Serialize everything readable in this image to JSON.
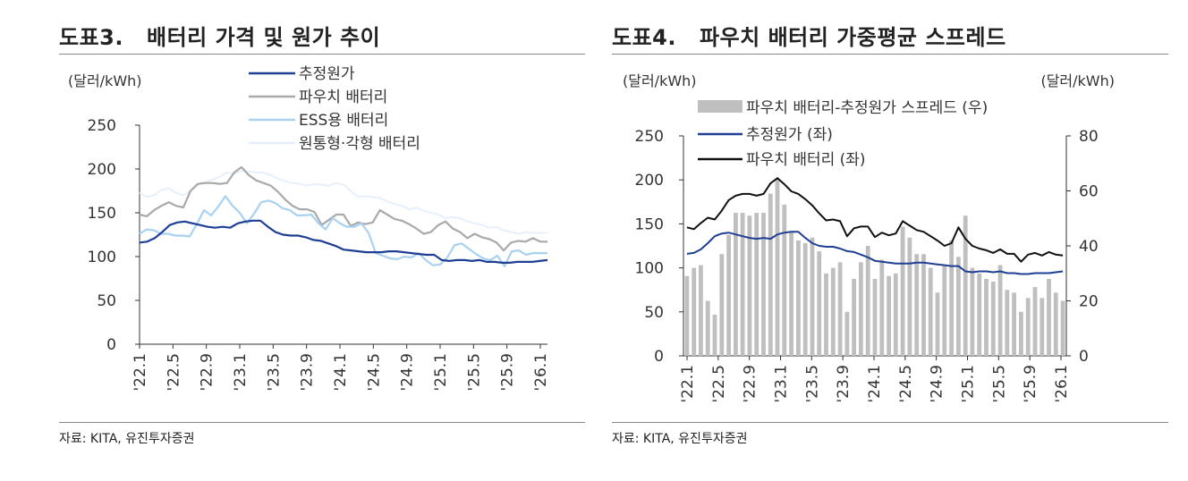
{
  "chart_data": [
    {
      "type": "line",
      "figure_no": "도표3.",
      "title": "배터리 가격 및 원가 추이",
      "ylabel": "(달러/kWh)",
      "ylim": [
        0,
        250
      ],
      "yticks": [
        "0",
        "50",
        "100",
        "150",
        "200",
        "250"
      ],
      "xticklabels": [
        "'22.1",
        "'22.5",
        "'22.9",
        "'23.1",
        "'23.5",
        "'23.9",
        "'24.1",
        "'24.5",
        "'24.9",
        "'25.1",
        "'25.5",
        "'25.9",
        "'26.1"
      ],
      "source": "자료: KITA, 유진투자증권",
      "series": [
        {
          "name": "추정원가",
          "color": "#1F3F94",
          "width": 2.2,
          "values": [
            116,
            117,
            121,
            128,
            136,
            139,
            140,
            138,
            136,
            134,
            133,
            134,
            133,
            138,
            140,
            141,
            141,
            134,
            128,
            125,
            124,
            124,
            122,
            119,
            118,
            115,
            112,
            108,
            107,
            106,
            105,
            105,
            105,
            106,
            106,
            105,
            104,
            103,
            102,
            102,
            96,
            95,
            96,
            96,
            95,
            96,
            94,
            94,
            93,
            93,
            94,
            94,
            94,
            95,
            96
          ]
        },
        {
          "name": "파우치 배터리",
          "color": "#A9A9A9",
          "width": 2.2,
          "values": [
            148,
            146,
            153,
            158,
            162,
            158,
            156,
            175,
            183,
            184,
            184,
            183,
            184,
            196,
            202,
            193,
            187,
            184,
            181,
            174,
            165,
            158,
            154,
            154,
            151,
            136,
            142,
            148,
            148,
            135,
            139,
            137,
            139,
            153,
            148,
            143,
            141,
            137,
            132,
            126,
            128,
            136,
            140,
            132,
            128,
            121,
            126,
            122,
            120,
            116,
            107,
            116,
            118,
            117,
            121,
            117,
            117
          ]
        },
        {
          "name": "ESS용 배터리",
          "color": "#A9D1F2",
          "width": 2.2,
          "values": [
            126,
            131,
            130,
            126,
            126,
            124,
            124,
            123,
            137,
            153,
            147,
            157,
            169,
            158,
            150,
            138,
            149,
            162,
            164,
            161,
            155,
            153,
            147,
            147,
            148,
            138,
            131,
            144,
            138,
            134,
            134,
            138,
            127,
            104,
            101,
            98,
            97,
            100,
            99,
            104,
            96,
            90,
            91,
            99,
            113,
            115,
            109,
            103,
            98,
            96,
            101,
            89,
            106,
            107,
            102,
            104,
            104,
            104
          ]
        },
        {
          "name": "원통형·각형 배터리",
          "color": "#E6F0FB",
          "width": 2.0,
          "values": [
            173,
            168,
            170,
            176,
            178,
            173,
            170,
            175,
            182,
            185,
            188,
            191,
            196,
            194,
            198,
            197,
            196,
            196,
            193,
            189,
            186,
            184,
            183,
            181,
            183,
            182,
            181,
            184,
            182,
            175,
            168,
            169,
            168,
            167,
            163,
            160,
            158,
            154,
            156,
            152,
            150,
            148,
            144,
            145,
            144,
            140,
            138,
            136,
            133,
            134,
            130,
            128,
            126,
            128,
            127,
            127,
            127
          ]
        }
      ]
    },
    {
      "type": "bar+line",
      "figure_no": "도표4.",
      "title": "파우치 배터리 가중평균 스프레드",
      "ylabel_left": "(달러/kWh)",
      "ylabel_right": "(달러/kWh)",
      "ylim_left": [
        0,
        250
      ],
      "ylim_right": [
        0,
        80
      ],
      "yticks_left": [
        "0",
        "50",
        "100",
        "150",
        "200",
        "250"
      ],
      "yticks_right": [
        "0",
        "20",
        "40",
        "60",
        "80"
      ],
      "xticklabels": [
        "'22.1",
        "'22.5",
        "'22.9",
        "'23.1",
        "'23.5",
        "'23.9",
        "'24.1",
        "'24.5",
        "'24.9",
        "'25.1",
        "'25.5",
        "'25.9",
        "'26.1"
      ],
      "source": "자료: KITA, 유진투자증권",
      "bars": {
        "name": "파우치 배터리-추정원가 스프레드 (우)",
        "color": "#BFBFBF",
        "values": [
          29,
          32,
          33,
          20,
          15,
          37,
          44,
          52,
          52,
          51,
          52,
          52,
          59,
          64,
          55,
          45,
          42,
          41,
          43,
          38,
          30,
          32,
          34,
          16,
          28,
          34,
          40,
          28,
          35,
          29,
          30,
          47,
          43,
          37,
          37,
          32,
          23,
          33,
          42,
          36,
          51,
          32,
          30,
          28,
          27,
          33,
          24,
          23,
          16,
          21,
          25,
          21,
          28,
          23,
          20
        ]
      },
      "series": [
        {
          "name": "추정원가 (좌)",
          "axis": "left",
          "color": "#1F3F94",
          "width": 2.0,
          "values": [
            116,
            117,
            121,
            128,
            136,
            139,
            140,
            138,
            136,
            134,
            133,
            134,
            133,
            138,
            140,
            141,
            141,
            134,
            128,
            125,
            124,
            124,
            122,
            119,
            118,
            115,
            112,
            108,
            107,
            106,
            105,
            105,
            105,
            106,
            106,
            105,
            104,
            103,
            102,
            102,
            96,
            95,
            96,
            96,
            95,
            96,
            94,
            94,
            93,
            93,
            94,
            94,
            94,
            95,
            96
          ]
        },
        {
          "name": "파우치 배터리 (좌)",
          "axis": "left",
          "color": "#111111",
          "width": 2.0,
          "values": [
            146,
            144,
            151,
            157,
            155,
            165,
            177,
            182,
            184,
            184,
            182,
            184,
            196,
            202,
            195,
            187,
            184,
            178,
            171,
            162,
            154,
            155,
            153,
            136,
            145,
            147,
            147,
            135,
            140,
            137,
            139,
            153,
            148,
            143,
            141,
            136,
            131,
            125,
            128,
            146,
            133,
            125,
            122,
            120,
            117,
            121,
            116,
            116,
            107,
            115,
            117,
            114,
            118,
            115,
            114
          ]
        }
      ]
    }
  ]
}
